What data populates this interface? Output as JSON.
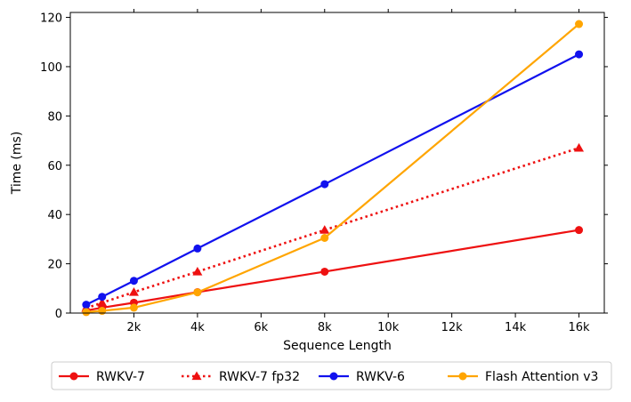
{
  "chart_data": {
    "type": "line",
    "xlabel": "Sequence Length",
    "ylabel": "Time (ms)",
    "xlim": [
      0,
      17200
    ],
    "ylim": [
      0,
      122
    ],
    "x_ticks": [
      {
        "value": 2048,
        "label": "2k"
      },
      {
        "value": 4096,
        "label": "4k"
      },
      {
        "value": 6144,
        "label": "6k"
      },
      {
        "value": 8192,
        "label": "8k"
      },
      {
        "value": 10240,
        "label": "10k"
      },
      {
        "value": 12288,
        "label": "12k"
      },
      {
        "value": 14336,
        "label": "14k"
      },
      {
        "value": 16384,
        "label": "16k"
      }
    ],
    "y_ticks": [
      {
        "value": 0,
        "label": "0"
      },
      {
        "value": 20,
        "label": "20"
      },
      {
        "value": 40,
        "label": "40"
      },
      {
        "value": 60,
        "label": "60"
      },
      {
        "value": 80,
        "label": "80"
      },
      {
        "value": 100,
        "label": "100"
      },
      {
        "value": 120,
        "label": "120"
      }
    ],
    "grid": false,
    "legend_position": "bottom",
    "series": [
      {
        "name": "RWKV-7",
        "color": "#ee1111",
        "marker": "circle",
        "dash": "solid",
        "x": [
          512,
          1024,
          2048,
          4096,
          8192,
          16384
        ],
        "y": [
          1.0,
          2.2,
          4.2,
          8.5,
          16.8,
          33.7
        ]
      },
      {
        "name": "RWKV-7 fp32",
        "color": "#ee1111",
        "marker": "triangle",
        "dash": "dotted",
        "x": [
          512,
          1024,
          2048,
          4096,
          8192,
          16384
        ],
        "y": [
          2.0,
          4.2,
          8.5,
          16.8,
          33.7,
          67.0
        ]
      },
      {
        "name": "RWKV-6",
        "color": "#1111ee",
        "marker": "circle",
        "dash": "solid",
        "x": [
          512,
          1024,
          2048,
          4096,
          8192,
          16384
        ],
        "y": [
          3.4,
          6.6,
          13.1,
          26.2,
          52.3,
          105.0
        ]
      },
      {
        "name": "Flash Attention v3",
        "color": "#ffa500",
        "marker": "circle",
        "dash": "solid",
        "x": [
          512,
          1024,
          2048,
          4096,
          8192,
          16384
        ],
        "y": [
          0.4,
          0.9,
          2.2,
          8.4,
          30.5,
          117.3
        ]
      }
    ]
  }
}
